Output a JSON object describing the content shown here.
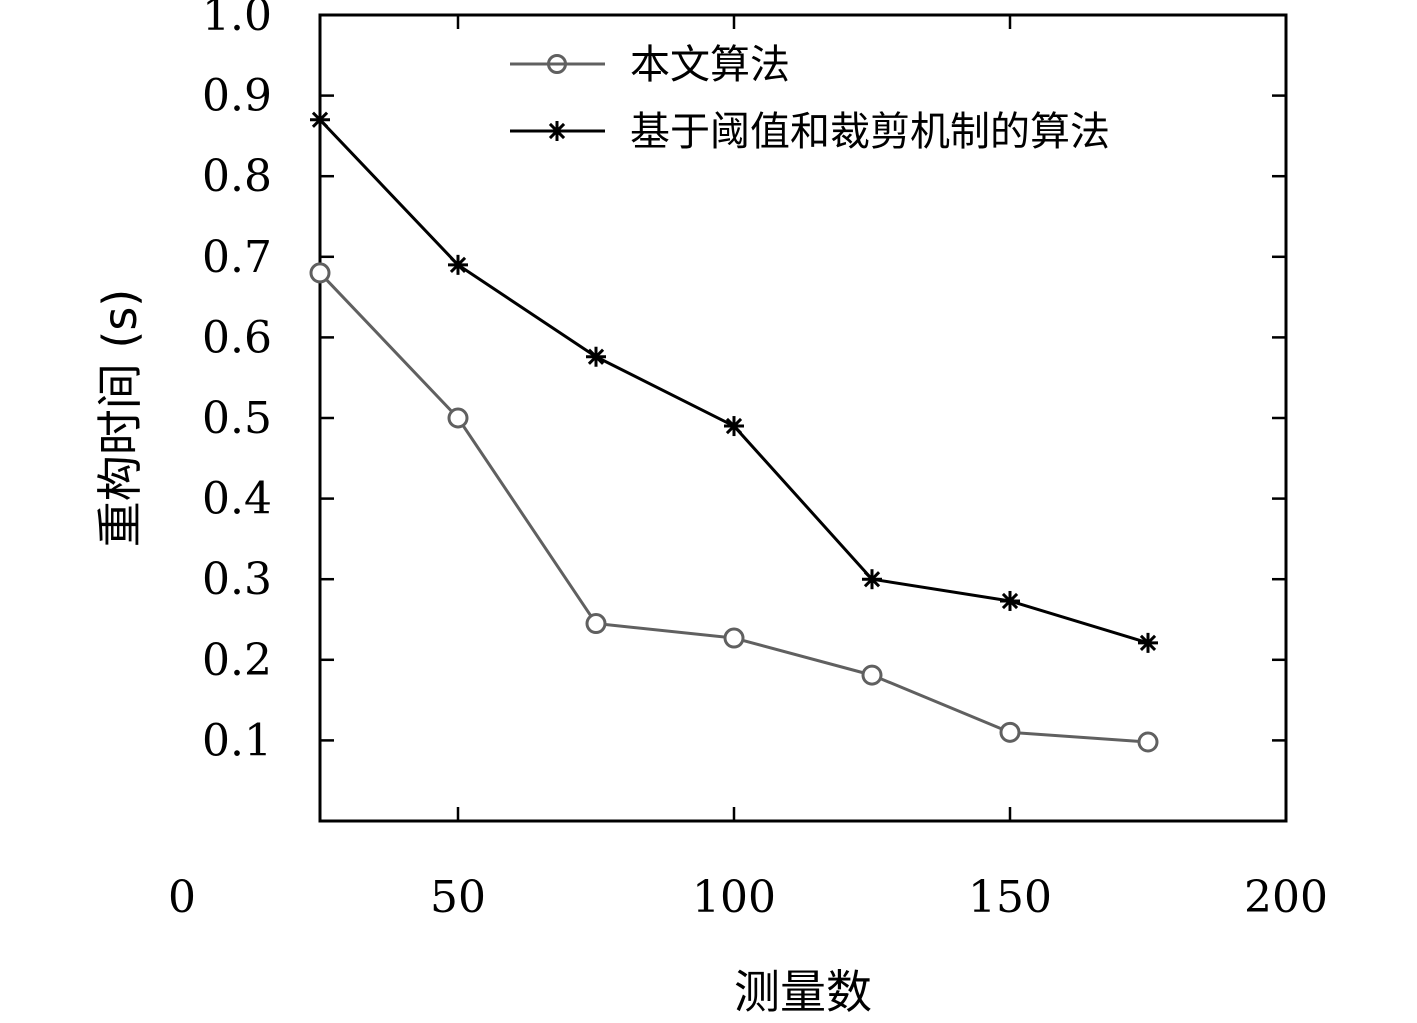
{
  "chart_data": {
    "type": "line",
    "xlabel": "测量数",
    "ylabel": "重构时间 (s)",
    "xlim": [
      25,
      200
    ],
    "ylim": [
      0.0,
      1.0
    ],
    "x_ticks": [
      "0",
      "50",
      "100",
      "150",
      "200"
    ],
    "y_ticks": [
      "0.1",
      "0.2",
      "0.3",
      "0.4",
      "0.5",
      "0.6",
      "0.7",
      "0.8",
      "0.9",
      "1.0"
    ],
    "legend_position": "top",
    "x": [
      25,
      50,
      75,
      100,
      125,
      150,
      175
    ],
    "series": [
      {
        "name": "本文算法",
        "marker": "circle",
        "color": "#606060",
        "values": [
          0.68,
          0.5,
          0.245,
          0.227,
          0.181,
          0.11,
          0.098
        ]
      },
      {
        "name": "基于阈值和裁剪机制的算法",
        "marker": "asterisk",
        "color": "#000000",
        "values": [
          0.87,
          0.69,
          0.576,
          0.49,
          0.3,
          0.273,
          0.221
        ]
      }
    ]
  }
}
